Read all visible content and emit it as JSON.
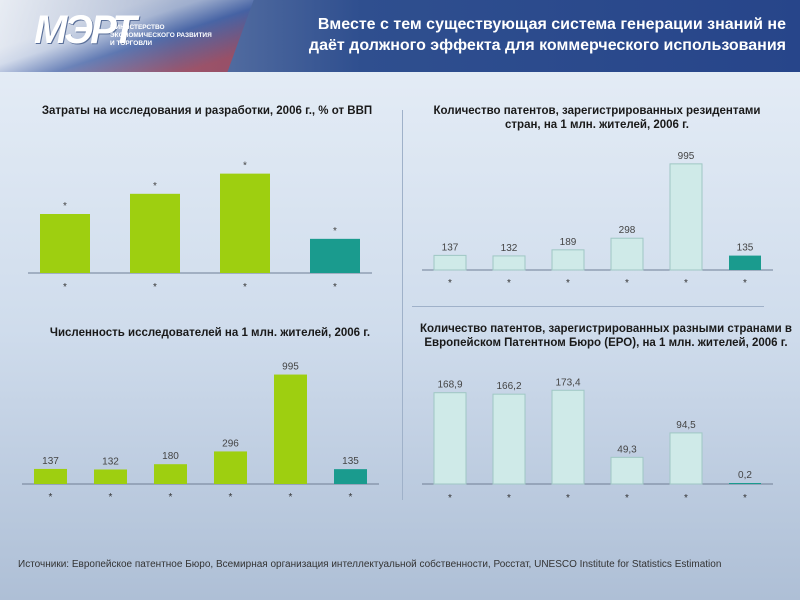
{
  "header": {
    "logo": "МЭРТ",
    "ministry_lines": [
      "Министерство",
      "экономического развития",
      "и торговли"
    ],
    "title_line1": "Вместе с тем существующая система генерации знаний не",
    "title_line2": "даёт должного эффекта для коммерческого использования"
  },
  "footer": {
    "sources": "Источники: Европейское патентное Бюро, Всемирная организация интеллектуальной собственности, Росстат, UNESCO Institute for Statistics Estimation"
  },
  "colors": {
    "green": "#9ecf10",
    "teal": "#1a9b8e",
    "lightblue": "#cfeae8"
  },
  "chart_data": [
    {
      "id": "rd",
      "type": "bar",
      "title": "Затраты на исследования и разработки, 2006 г., % от ВВП",
      "categories": [
        "*",
        "*",
        "*",
        "*"
      ],
      "values": [
        1.9,
        2.55,
        3.2,
        1.1
      ],
      "value_labels": [
        "*",
        "*",
        "*",
        "*"
      ],
      "colors": [
        "#9ecf10",
        "#9ecf10",
        "#9ecf10",
        "#1a9b8e"
      ],
      "ylim": [
        0,
        3.8
      ]
    },
    {
      "id": "patents_res",
      "type": "bar",
      "title": "Количество патентов, зарегистрированных резидентами стран, на 1 млн. жителей, 2006 г.",
      "categories": [
        "*",
        "*",
        "*",
        "*",
        "*",
        "*"
      ],
      "values": [
        137,
        132,
        189,
        298,
        995,
        135
      ],
      "value_labels": [
        "137",
        "132",
        "189",
        "298",
        "995",
        "135"
      ],
      "colors": [
        "#cfeae8",
        "#cfeae8",
        "#cfeae8",
        "#cfeae8",
        "#cfeae8",
        "#1a9b8e"
      ],
      "ylim": [
        0,
        1050
      ]
    },
    {
      "id": "researchers",
      "type": "bar",
      "title": "Численность исследователей на 1 млн. жителей, 2006 г.",
      "categories": [
        "*",
        "*",
        "*",
        "*",
        "*",
        "*"
      ],
      "values": [
        137,
        132,
        180,
        296,
        995,
        135
      ],
      "value_labels": [
        "137",
        "132",
        "180",
        "296",
        "995",
        "135"
      ],
      "colors": [
        "#9ecf10",
        "#9ecf10",
        "#9ecf10",
        "#9ecf10",
        "#9ecf10",
        "#1a9b8e"
      ],
      "ylim": [
        0,
        1000
      ]
    },
    {
      "id": "patents_epo",
      "type": "bar",
      "title": "Количество патентов, зарегистрированных разными странами в Европейском Патентном Бюро (ЕРО), на 1 млн. жителей, 2006 г.",
      "categories": [
        "*",
        "*",
        "*",
        "*",
        "*",
        "*"
      ],
      "values": [
        168.9,
        166.2,
        173.4,
        49.3,
        94.5,
        0.2
      ],
      "value_labels": [
        "168,9",
        "166,2",
        "173,4",
        "49,3",
        "94,5",
        "0,2"
      ],
      "colors": [
        "#cfeae8",
        "#cfeae8",
        "#cfeae8",
        "#cfeae8",
        "#cfeae8",
        "#1a9b8e"
      ],
      "ylim": [
        0,
        185
      ]
    }
  ]
}
